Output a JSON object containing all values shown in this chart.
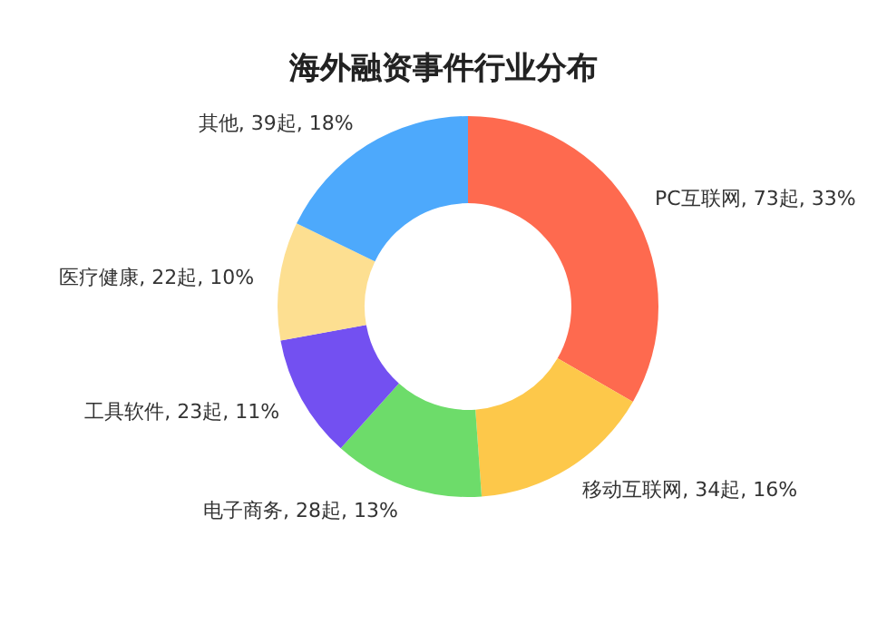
{
  "chart_data": {
    "type": "donut",
    "title": "海外融资事件行业分布",
    "categories": [
      "PC互联网",
      "移动互联网",
      "电子商务",
      "工具软件",
      "医疗健康",
      "其他"
    ],
    "values": [
      73,
      34,
      28,
      23,
      22,
      39
    ],
    "value_labels": [
      "73起, 33%",
      "34起, 16%",
      "28起, 13%",
      "23起, 11%",
      "22起, 10%",
      "39起, 18%"
    ],
    "colors": [
      "#fe6a4f",
      "#fdc84a",
      "#6ddc6a",
      "#7350f1",
      "#fddf91",
      "#4da9fc"
    ]
  }
}
